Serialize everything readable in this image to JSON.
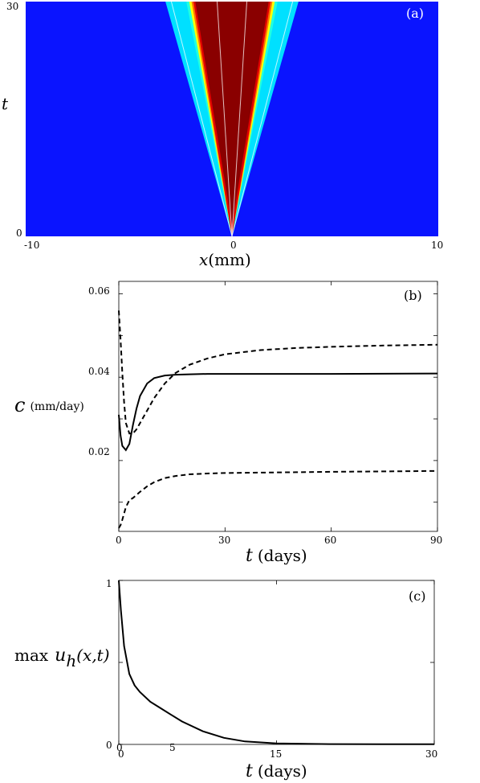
{
  "chart_data": [
    {
      "type": "heatmap",
      "panel_label": "(a)",
      "xlabel_var": "x",
      "xlabel_unit": "(mm)",
      "ylabel": "t",
      "xlim": [
        -10,
        10
      ],
      "ylim": [
        0,
        30
      ],
      "x_ticks": [
        "-10",
        "0",
        "10"
      ],
      "y_ticks": [
        "0",
        "30"
      ],
      "colors": {
        "background": "#0a14ff",
        "core": "#8a0000"
      },
      "front_speeds": {
        "outer": 0.098,
        "inner": 0.076,
        "center": 0.024
      },
      "wave_width_growth": 0.07
    },
    {
      "type": "line",
      "panel_label": "(b)",
      "ylabel_var": "c",
      "ylabel_unit": "(mm/day)",
      "xlabel_var": "t",
      "xlabel_unit": "(days)",
      "xlim": [
        0,
        90
      ],
      "ylim": [
        0.003,
        0.063
      ],
      "x_ticks": [
        "0",
        "30",
        "60",
        "90"
      ],
      "y_ticks": [
        "0.02",
        "0.04",
        "0.06"
      ],
      "series": [
        {
          "style": "solid",
          "x": [
            0,
            0.5,
            1,
            2,
            3,
            4,
            5,
            6,
            8,
            10,
            13,
            16,
            20,
            25,
            30,
            40,
            60,
            90
          ],
          "y": [
            0.031,
            0.026,
            0.0235,
            0.0225,
            0.024,
            0.0285,
            0.0325,
            0.0355,
            0.0385,
            0.0398,
            0.0404,
            0.0406,
            0.0407,
            0.0408,
            0.0408,
            0.0408,
            0.0408,
            0.0409
          ]
        },
        {
          "style": "dashed",
          "x": [
            0,
            0.5,
            1,
            1.5,
            2,
            3,
            4,
            5,
            6,
            8,
            10,
            13,
            16,
            20,
            25,
            30,
            40,
            50,
            60,
            75,
            90
          ],
          "y": [
            0.056,
            0.049,
            0.041,
            0.034,
            0.029,
            0.0265,
            0.0265,
            0.0275,
            0.029,
            0.032,
            0.035,
            0.0385,
            0.041,
            0.043,
            0.0445,
            0.0455,
            0.0465,
            0.047,
            0.0473,
            0.0476,
            0.0478
          ]
        },
        {
          "style": "dashed",
          "x": [
            0,
            0.5,
            1,
            2,
            3,
            4,
            6,
            8,
            10,
            13,
            16,
            20,
            25,
            30,
            40,
            50,
            60,
            75,
            90
          ],
          "y": [
            0.0038,
            0.0045,
            0.0058,
            0.0088,
            0.0105,
            0.011,
            0.0125,
            0.0138,
            0.0148,
            0.0158,
            0.0163,
            0.0167,
            0.0169,
            0.017,
            0.0171,
            0.0172,
            0.0173,
            0.0174,
            0.0175
          ]
        }
      ]
    },
    {
      "type": "line",
      "panel_label": "(c)",
      "ylabel_prefix": "max",
      "ylabel_var": "u",
      "ylabel_sub": "h",
      "ylabel_args": "(x,t)",
      "xlabel_var": "t",
      "xlabel_unit": "(days)",
      "xlim": [
        0,
        30
      ],
      "ylim": [
        0,
        1
      ],
      "x_ticks": [
        "0",
        "15",
        "30"
      ],
      "y_ticks": [
        "0",
        "1"
      ],
      "minor_labels": [
        "0",
        "5"
      ],
      "series": [
        {
          "style": "solid",
          "x": [
            0,
            0.2,
            0.5,
            1,
            1.5,
            2,
            3,
            4,
            5,
            6,
            8,
            10,
            12,
            15,
            20,
            25,
            30
          ],
          "y": [
            1.0,
            0.82,
            0.6,
            0.43,
            0.36,
            0.32,
            0.26,
            0.22,
            0.18,
            0.14,
            0.08,
            0.04,
            0.018,
            0.006,
            0.002,
            0.001,
            0.001
          ]
        }
      ]
    }
  ]
}
